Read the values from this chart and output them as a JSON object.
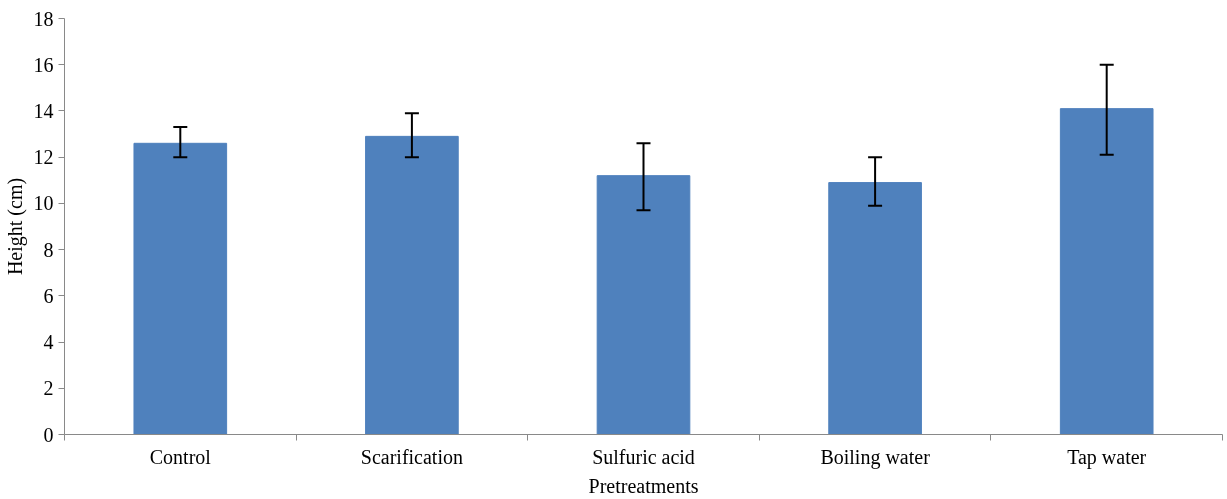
{
  "chart_data": {
    "type": "bar",
    "xlabel": "Pretreatments",
    "ylabel": "Height (cm)",
    "categories": [
      "Control",
      "Scarification",
      "Sulfuric acid",
      "Boiling water",
      "Tap water"
    ],
    "values": [
      12.6,
      12.9,
      11.2,
      10.9,
      14.1
    ],
    "errors": [
      [
        12.0,
        13.3
      ],
      [
        12.0,
        13.9
      ],
      [
        9.7,
        12.6
      ],
      [
        9.9,
        12.0
      ],
      [
        12.1,
        16.0
      ]
    ],
    "color": "#4f81bd",
    "ylim": [
      0,
      18
    ],
    "yticks": [
      0,
      2,
      4,
      6,
      8,
      10,
      12,
      14,
      16,
      18
    ],
    "grid": false
  }
}
